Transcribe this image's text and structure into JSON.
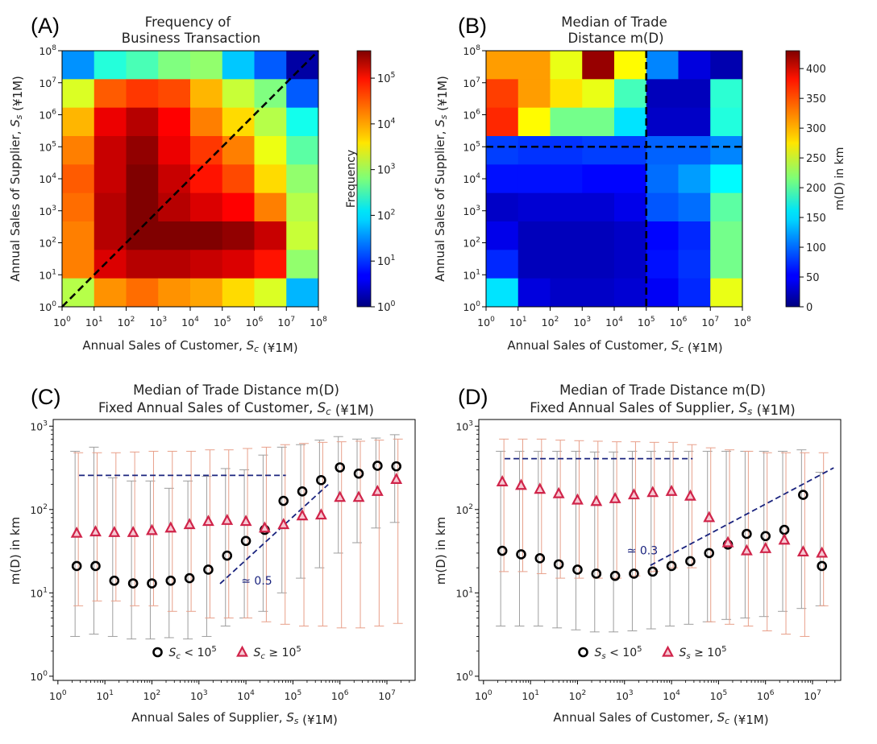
{
  "colors": {
    "dash_black": "#000000",
    "dash_navy": "#1a237e",
    "marker_black": "#000000",
    "marker_red": "#d0244a",
    "err_grey": "#9e9e9e",
    "err_salmon": "#e8a08a"
  },
  "chart_data": [
    {
      "id": "A",
      "type": "heatmap",
      "panel_letter": "(A)",
      "title_lines": [
        "Frequency of",
        "Business Transaction"
      ],
      "xlabel": "Annual Sales of Customer, S_c (¥1M)",
      "ylabel": "Annual Sales of Supplier, S_s (¥1M)",
      "x_ticks": [
        "10^0",
        "10^1",
        "10^2",
        "10^3",
        "10^4",
        "10^5",
        "10^6",
        "10^7",
        "10^8"
      ],
      "y_ticks": [
        "10^0",
        "10^1",
        "10^2",
        "10^3",
        "10^4",
        "10^5",
        "10^6",
        "10^7",
        "10^8"
      ],
      "log10_range": [
        0,
        8
      ],
      "colorbar": {
        "label": "Frequency",
        "scale": "log",
        "max_log10": 5.6,
        "ticks": [
          "10^0",
          "10^1",
          "10^2",
          "10^3",
          "10^4",
          "10^5"
        ]
      },
      "note": "grid rows top (S_s 10^7-10^8) to bottom (10^0-10^1); columns S_c 10^0 to 10^8; values are log10(frequency)",
      "grid_log10": [
        [
          1.5,
          2.3,
          2.5,
          2.8,
          2.9,
          1.8,
          1.2,
          0.2
        ],
        [
          3.3,
          4.4,
          4.6,
          4.5,
          3.9,
          3.2,
          2.8,
          1.2
        ],
        [
          3.9,
          5.0,
          5.3,
          4.9,
          4.2,
          3.7,
          3.1,
          2.2
        ],
        [
          4.2,
          5.2,
          5.5,
          5.0,
          4.6,
          4.2,
          3.4,
          2.6
        ],
        [
          4.4,
          5.2,
          5.6,
          5.2,
          4.8,
          4.5,
          3.7,
          2.9
        ],
        [
          4.3,
          5.3,
          5.6,
          5.3,
          5.1,
          4.9,
          4.2,
          3.1
        ],
        [
          4.2,
          5.3,
          5.6,
          5.6,
          5.6,
          5.5,
          5.2,
          3.2
        ],
        [
          4.2,
          5.1,
          5.3,
          5.3,
          5.2,
          5.1,
          4.8,
          2.9
        ],
        [
          3.1,
          4.1,
          4.3,
          4.1,
          4.0,
          3.7,
          3.3,
          1.7
        ]
      ],
      "diagonal_dashed": true
    },
    {
      "id": "B",
      "type": "heatmap",
      "panel_letter": "(B)",
      "title_lines": [
        "Median of Trade",
        "Distance m(D)"
      ],
      "xlabel": "Annual Sales of Customer, S_c (¥1M)",
      "ylabel": "Annual Sales of Supplier, S_s (¥1M)",
      "x_ticks": [
        "10^0",
        "10^1",
        "10^2",
        "10^3",
        "10^4",
        "10^5",
        "10^6",
        "10^7",
        "10^8"
      ],
      "y_ticks": [
        "10^0",
        "10^1",
        "10^2",
        "10^3",
        "10^4",
        "10^5",
        "10^6",
        "10^7",
        "10^8"
      ],
      "log10_range": [
        0,
        8
      ],
      "colorbar": {
        "label": "m(D) in km",
        "scale": "linear",
        "min": 0,
        "max": 430,
        "ticks": [
          0,
          50,
          100,
          150,
          200,
          250,
          300,
          350,
          400
        ]
      },
      "note": "values in km; rows top to bottom",
      "grid": [
        [
          310,
          310,
          260,
          420,
          270,
          110,
          40,
          20
        ],
        [
          350,
          310,
          280,
          260,
          190,
          25,
          25,
          180
        ],
        [
          360,
          270,
          210,
          210,
          150,
          30,
          30,
          175
        ],
        [
          80,
          75,
          75,
          80,
          80,
          95,
          95,
          110
        ],
        [
          60,
          60,
          60,
          55,
          55,
          100,
          120,
          160
        ],
        [
          30,
          35,
          35,
          35,
          45,
          90,
          100,
          200
        ],
        [
          45,
          25,
          25,
          25,
          30,
          55,
          70,
          210
        ],
        [
          70,
          25,
          25,
          25,
          30,
          60,
          75,
          210
        ],
        [
          150,
          40,
          30,
          30,
          35,
          50,
          70,
          260
        ]
      ],
      "dashed_lines_at_log10": {
        "x": 5,
        "y": 5
      }
    },
    {
      "id": "C",
      "type": "scatter",
      "panel_letter": "(C)",
      "title_lines": [
        "Median of Trade Distance m(D)",
        "Fixed Annual Sales of Customer, S_c (¥1M)"
      ],
      "xlabel": "Annual Sales of Supplier, S_s (¥1M)",
      "ylabel": "m(D) in km",
      "x_ticks": [
        "10^0",
        "10^1",
        "10^2",
        "10^3",
        "10^4",
        "10^5",
        "10^6",
        "10^7"
      ],
      "y_ticks": [
        "10^0",
        "10^1",
        "10^2",
        "10^3"
      ],
      "xlim_log10": [
        -0.1,
        7.6
      ],
      "ylim_log10": [
        -0.05,
        3.08
      ],
      "x_log10": [
        0.4,
        0.8,
        1.2,
        1.6,
        2.0,
        2.4,
        2.8,
        3.2,
        3.6,
        4.0,
        4.4,
        4.8,
        5.2,
        5.6,
        6.0,
        6.4,
        6.8,
        7.2
      ],
      "series": [
        {
          "name": "S_c < 10^5",
          "marker": "circle",
          "median": [
            21,
            21,
            14,
            13,
            13,
            14,
            15,
            19,
            28,
            42,
            57,
            127,
            165,
            225,
            320,
            270,
            335,
            330
          ],
          "lo": [
            3,
            3.2,
            3,
            2.8,
            2.8,
            2.9,
            2.8,
            3,
            4,
            5,
            6,
            10,
            15,
            20,
            30,
            40,
            60,
            70
          ],
          "hi": [
            500,
            560,
            240,
            220,
            220,
            180,
            220,
            250,
            310,
            300,
            450,
            560,
            600,
            680,
            750,
            700,
            720,
            790
          ]
        },
        {
          "name": "S_c ≥ 10^5",
          "marker": "triangle",
          "median": [
            52,
            54,
            53,
            53,
            56,
            60,
            66,
            72,
            74,
            72,
            60,
            66,
            84,
            86,
            140,
            140,
            165,
            230
          ],
          "lo": [
            7,
            8,
            8,
            7,
            7,
            6,
            6,
            5,
            5,
            5,
            4.5,
            4.2,
            4,
            4,
            3.8,
            3.8,
            4,
            4.3
          ],
          "hi": [
            480,
            480,
            480,
            490,
            500,
            500,
            500,
            520,
            520,
            540,
            560,
            600,
            620,
            640,
            650,
            660,
            680,
            700
          ]
        }
      ],
      "annotations": [
        {
          "text": "≃ 0.5",
          "at": [
            3.9,
            1.1
          ]
        }
      ],
      "reference_lines": [
        {
          "from": [
            0.45,
            2.41
          ],
          "to": [
            4.85,
            2.41
          ]
        },
        {
          "from": [
            3.45,
            1.11
          ],
          "to": [
            5.75,
            2.3
          ]
        }
      ],
      "legend": [
        "S_c < 10^5",
        "S_c ≥ 10^5"
      ]
    },
    {
      "id": "D",
      "type": "scatter",
      "panel_letter": "(D)",
      "title_lines": [
        "Median of Trade Distance m(D)",
        "Fixed Annual Sales of Supplier, S_s (¥1M)"
      ],
      "xlabel": "Annual Sales of Customer, S_c (¥1M)",
      "ylabel": "m(D) in km",
      "x_ticks": [
        "10^0",
        "10^1",
        "10^2",
        "10^3",
        "10^4",
        "10^5",
        "10^6",
        "10^7"
      ],
      "y_ticks": [
        "10^0",
        "10^1",
        "10^2",
        "10^3"
      ],
      "xlim_log10": [
        -0.1,
        7.6
      ],
      "ylim_log10": [
        -0.05,
        3.08
      ],
      "x_log10": [
        0.4,
        0.8,
        1.2,
        1.6,
        2.0,
        2.4,
        2.8,
        3.2,
        3.6,
        4.0,
        4.4,
        4.8,
        5.2,
        5.6,
        6.0,
        6.4,
        6.8,
        7.2
      ],
      "series": [
        {
          "name": "S_s < 10^5",
          "marker": "circle",
          "median": [
            32,
            29,
            26,
            22,
            19,
            17,
            16,
            17,
            18,
            21,
            24,
            30,
            38,
            51,
            48,
            57,
            150,
            21
          ],
          "lo": [
            4,
            4,
            4,
            3.8,
            3.6,
            3.4,
            3.4,
            3.5,
            3.7,
            4,
            4.2,
            4.5,
            4.8,
            5,
            5.2,
            6,
            6.5,
            7
          ],
          "hi": [
            500,
            500,
            500,
            500,
            500,
            490,
            490,
            500,
            500,
            500,
            500,
            500,
            500,
            500,
            500,
            500,
            520,
            280
          ]
        },
        {
          "name": "S_s ≥ 10^5",
          "marker": "triangle",
          "median": [
            215,
            195,
            175,
            155,
            130,
            125,
            135,
            150,
            160,
            165,
            145,
            80,
            40,
            32,
            34,
            43,
            31,
            30
          ],
          "lo": [
            18,
            18,
            17,
            15,
            15,
            15,
            15,
            16,
            18,
            20,
            20,
            4.5,
            4.2,
            4,
            3.5,
            3.2,
            3,
            7
          ],
          "hi": [
            700,
            700,
            700,
            680,
            670,
            660,
            650,
            650,
            640,
            640,
            600,
            550,
            520,
            500,
            480,
            480,
            480,
            480
          ]
        }
      ],
      "annotations": [
        {
          "text": "≃ 0.3",
          "at": [
            3.05,
            1.46
          ]
        }
      ],
      "reference_lines": [
        {
          "from": [
            0.45,
            2.61
          ],
          "to": [
            4.45,
            2.61
          ]
        },
        {
          "from": [
            3.55,
            1.33
          ],
          "to": [
            7.45,
            2.5
          ]
        }
      ],
      "legend": [
        "S_s < 10^5",
        "S_s ≥ 10^5"
      ]
    }
  ]
}
